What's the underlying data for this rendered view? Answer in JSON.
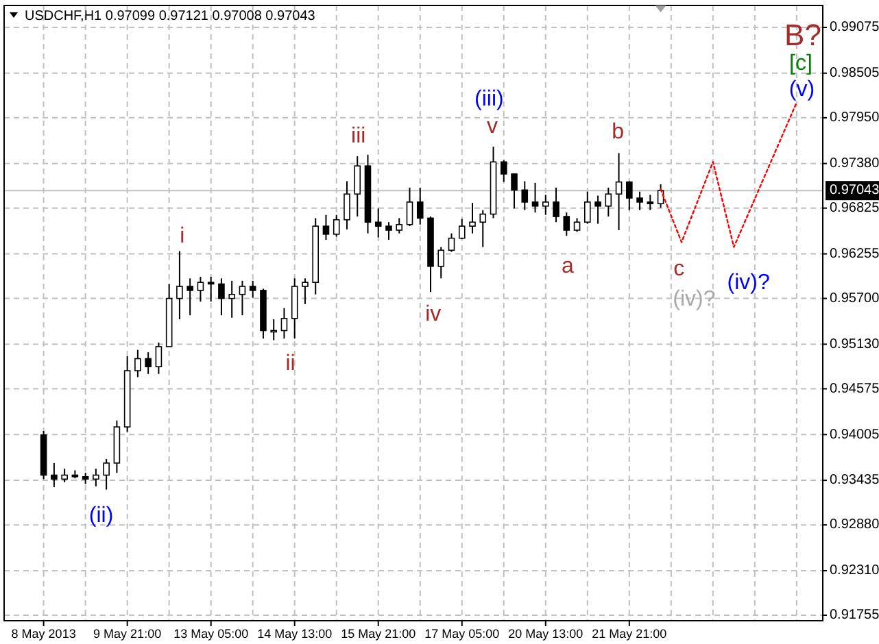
{
  "chart_data": {
    "type": "candlestick",
    "title": "USDCHF,H1  0.97099 0.97121 0.97008 0.97043",
    "categories": [
      "8 May 2013",
      null,
      null,
      null,
      null,
      null,
      null,
      null,
      "9 May 21:00",
      null,
      null,
      null,
      null,
      null,
      null,
      null,
      "13 May 05:00",
      null,
      null,
      null,
      null,
      null,
      null,
      null,
      "14 May 13:00",
      null,
      null,
      null,
      null,
      null,
      null,
      null,
      "15 May 21:00",
      null,
      null,
      null,
      null,
      null,
      null,
      null,
      "17 May 05:00",
      null,
      null,
      null,
      null,
      null,
      null,
      null,
      "20 May 13:00",
      null,
      null,
      null,
      null,
      null,
      null,
      null,
      "21 May 21:00",
      null,
      null,
      null,
      null,
      null,
      null,
      null,
      null,
      null,
      null,
      null,
      null,
      null,
      null,
      null,
      null,
      null,
      null
    ],
    "ohlc": [
      [
        0.94,
        0.9405,
        0.9345,
        0.935
      ],
      [
        0.935,
        0.9365,
        0.9335,
        0.9345
      ],
      [
        0.9345,
        0.9358,
        0.9341,
        0.935
      ],
      [
        0.935,
        0.9356,
        0.9346,
        0.9348
      ],
      [
        0.9348,
        0.9353,
        0.9339,
        0.9345
      ],
      [
        0.9345,
        0.9358,
        0.9336,
        0.935
      ],
      [
        0.935,
        0.937,
        0.9332,
        0.9365
      ],
      [
        0.9365,
        0.9418,
        0.9353,
        0.941
      ],
      [
        0.941,
        0.9498,
        0.9404,
        0.948
      ],
      [
        0.948,
        0.9506,
        0.9472,
        0.9495
      ],
      [
        0.9495,
        0.9503,
        0.9476,
        0.9485
      ],
      [
        0.9485,
        0.9515,
        0.9476,
        0.951
      ],
      [
        0.951,
        0.9588,
        0.951,
        0.957
      ],
      [
        0.957,
        0.9629,
        0.9544,
        0.9585
      ],
      [
        0.9585,
        0.9595,
        0.9549,
        0.958
      ],
      [
        0.958,
        0.9597,
        0.9566,
        0.959
      ],
      [
        0.959,
        0.9597,
        0.9566,
        0.9588
      ],
      [
        0.9588,
        0.9595,
        0.9549,
        0.957
      ],
      [
        0.957,
        0.9592,
        0.9546,
        0.9575
      ],
      [
        0.9575,
        0.9592,
        0.9549,
        0.9585
      ],
      [
        0.9585,
        0.9592,
        0.9571,
        0.958
      ],
      [
        0.958,
        0.9582,
        0.952,
        0.953
      ],
      [
        0.953,
        0.9544,
        0.9518,
        0.953
      ],
      [
        0.953,
        0.9558,
        0.952,
        0.9545
      ],
      [
        0.9545,
        0.9595,
        0.952,
        0.9585
      ],
      [
        0.9585,
        0.9595,
        0.9563,
        0.959
      ],
      [
        0.959,
        0.967,
        0.9575,
        0.966
      ],
      [
        0.966,
        0.9674,
        0.9643,
        0.965
      ],
      [
        0.965,
        0.9674,
        0.9647,
        0.9668
      ],
      [
        0.9668,
        0.9716,
        0.9656,
        0.97
      ],
      [
        0.97,
        0.9747,
        0.9672,
        0.9735
      ],
      [
        0.9735,
        0.9749,
        0.9651,
        0.9665
      ],
      [
        0.9665,
        0.9682,
        0.9646,
        0.966
      ],
      [
        0.966,
        0.9665,
        0.9643,
        0.9655
      ],
      [
        0.9655,
        0.967,
        0.9651,
        0.9662
      ],
      [
        0.9662,
        0.9708,
        0.966,
        0.969
      ],
      [
        0.969,
        0.9708,
        0.9662,
        0.967
      ],
      [
        0.967,
        0.9672,
        0.9578,
        0.961
      ],
      [
        0.961,
        0.9634,
        0.9595,
        0.963
      ],
      [
        0.963,
        0.9651,
        0.9628,
        0.9645
      ],
      [
        0.9645,
        0.9669,
        0.9644,
        0.966
      ],
      [
        0.966,
        0.9689,
        0.9651,
        0.9665
      ],
      [
        0.9665,
        0.968,
        0.9634,
        0.9675
      ],
      [
        0.9675,
        0.9759,
        0.967,
        0.974
      ],
      [
        0.974,
        0.9742,
        0.9715,
        0.9725
      ],
      [
        0.9725,
        0.9725,
        0.9682,
        0.9705
      ],
      [
        0.9705,
        0.9716,
        0.968,
        0.969
      ],
      [
        0.969,
        0.9714,
        0.9677,
        0.9685
      ],
      [
        0.9685,
        0.9699,
        0.9674,
        0.969
      ],
      [
        0.969,
        0.9708,
        0.9665,
        0.9672
      ],
      [
        0.9672,
        0.9677,
        0.9648,
        0.9655
      ],
      [
        0.9655,
        0.967,
        0.9653,
        0.9665
      ],
      [
        0.9665,
        0.9703,
        0.9663,
        0.969
      ],
      [
        0.969,
        0.9698,
        0.9663,
        0.9685
      ],
      [
        0.9685,
        0.9708,
        0.9672,
        0.97
      ],
      [
        0.97,
        0.9751,
        0.9655,
        0.9715
      ],
      [
        0.9715,
        0.9716,
        0.968,
        0.9695
      ],
      [
        0.9695,
        0.9703,
        0.968,
        0.969
      ],
      [
        0.969,
        0.9699,
        0.968,
        0.9688
      ],
      [
        0.9688,
        0.97121,
        0.9683,
        0.97043
      ],
      null,
      null,
      null,
      null,
      null,
      null,
      null,
      null,
      null,
      null,
      null,
      null,
      null,
      null,
      null
    ],
    "color": "#000000",
    "series": [
      {
        "type": "line",
        "color": "#ff0000",
        "line_style": "dotted",
        "values": [
          null,
          null,
          null,
          null,
          null,
          null,
          null,
          null,
          null,
          null,
          null,
          null,
          null,
          null,
          null,
          null,
          null,
          null,
          null,
          null,
          null,
          null,
          null,
          null,
          null,
          null,
          null,
          null,
          null,
          null,
          null,
          null,
          null,
          null,
          null,
          null,
          null,
          null,
          null,
          null,
          null,
          null,
          null,
          null,
          null,
          null,
          null,
          null,
          null,
          null,
          null,
          null,
          null,
          null,
          null,
          null,
          null,
          null,
          null,
          0.9706,
          null,
          0.964,
          null,
          null,
          0.974,
          null,
          0.9634,
          null,
          null,
          null,
          null,
          null,
          0.9814,
          null,
          null
        ]
      }
    ],
    "ylim": [
      0.91687,
      0.99348
    ],
    "yticks": [
      {
        "value": 0.99075,
        "label": "0.99075"
      },
      {
        "value": 0.98505,
        "label": "0.98505"
      },
      {
        "value": 0.9795,
        "label": "0.97950"
      },
      {
        "value": 0.9738,
        "label": "0.97380"
      },
      {
        "value": 0.96825,
        "label": "0.96825"
      },
      {
        "value": 0.96255,
        "label": "0.96255"
      },
      {
        "value": 0.957,
        "label": "0.95700"
      },
      {
        "value": 0.9513,
        "label": "0.95130"
      },
      {
        "value": 0.94575,
        "label": "0.94575"
      },
      {
        "value": 0.94005,
        "label": "0.94005"
      },
      {
        "value": 0.93435,
        "label": "0.93435"
      },
      {
        "value": 0.9288,
        "label": "0.92880"
      },
      {
        "value": 0.9231,
        "label": "0.92310"
      },
      {
        "value": 0.91755,
        "label": "0.91755"
      }
    ],
    "grid": true,
    "ref_lines": [
      {
        "axis": "y",
        "value": 0.97043,
        "label": "0.97043",
        "color": "#c0c0c0"
      }
    ],
    "annotations": [
      "(ii)",
      "i",
      "ii",
      "iii",
      "iv",
      "(iii)",
      "v",
      "a",
      "b",
      "c",
      "(iv)?",
      "(iv)?",
      {
        "text": "(v)",
        "y": 0.9814
      },
      {
        "text": "[c]",
        "y": 0.9814
      },
      "B?"
    ]
  }
}
